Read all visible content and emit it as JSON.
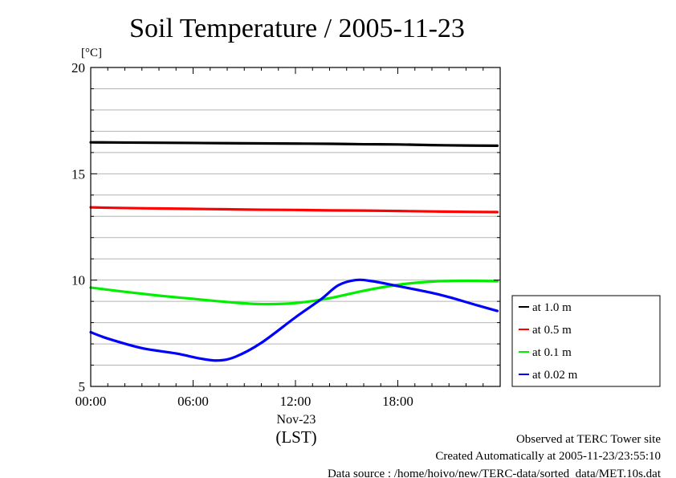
{
  "chart_data": {
    "type": "line",
    "title": "Soil Temperature / 2005-11-23",
    "ylabel": "[°C]",
    "xlabel": "(LST)",
    "x_date_label": "Nov-23",
    "x_ticks": [
      "00:00",
      "06:00",
      "12:00",
      "18:00"
    ],
    "xlim": [
      "00:00",
      "24:00"
    ],
    "ylim": [
      5,
      20
    ],
    "y_ticks": [
      "5",
      "10",
      "15",
      "20"
    ],
    "grid": true,
    "legend_position": "right",
    "series": [
      {
        "name": "at 1.0 m",
        "color": "#000000",
        "x": [
          "00:00",
          "02:00",
          "04:00",
          "06:00",
          "08:00",
          "10:00",
          "12:00",
          "14:00",
          "16:00",
          "18:00",
          "20:00",
          "22:00",
          "23:50"
        ],
        "values": [
          16.48,
          16.47,
          16.46,
          16.45,
          16.44,
          16.43,
          16.42,
          16.41,
          16.39,
          16.38,
          16.35,
          16.33,
          16.32
        ]
      },
      {
        "name": "at 0.5 m",
        "color": "#ff0000",
        "x": [
          "00:00",
          "02:00",
          "04:00",
          "06:00",
          "08:00",
          "10:00",
          "12:00",
          "14:00",
          "16:00",
          "18:00",
          "20:00",
          "22:00",
          "23:50"
        ],
        "values": [
          13.42,
          13.39,
          13.37,
          13.35,
          13.33,
          13.31,
          13.3,
          13.28,
          13.27,
          13.25,
          13.23,
          13.21,
          13.2
        ]
      },
      {
        "name": "at 0.1 m",
        "color": "#00ee00",
        "x": [
          "00:00",
          "02:00",
          "04:00",
          "06:00",
          "08:00",
          "10:00",
          "12:00",
          "14:00",
          "16:00",
          "18:00",
          "20:00",
          "22:00",
          "23:50"
        ],
        "values": [
          9.65,
          9.45,
          9.27,
          9.12,
          8.97,
          8.87,
          8.92,
          9.15,
          9.5,
          9.78,
          9.93,
          9.97,
          9.95
        ]
      },
      {
        "name": "at 0.02 m",
        "color": "#0000ff",
        "x": [
          "00:00",
          "01:00",
          "03:00",
          "05:00",
          "06:30",
          "07:30",
          "08:30",
          "10:00",
          "12:00",
          "13:30",
          "14:30",
          "15:30",
          "16:30",
          "18:00",
          "20:00",
          "21:00",
          "22:30",
          "23:50"
        ],
        "values": [
          7.55,
          7.25,
          6.8,
          6.55,
          6.3,
          6.22,
          6.4,
          7.05,
          8.25,
          9.1,
          9.75,
          10.0,
          9.95,
          9.72,
          9.4,
          9.2,
          8.85,
          8.55
        ]
      }
    ]
  },
  "footer": {
    "line1": "Observed at TERC Tower site",
    "line2": "Created Automatically at 2005-11-23/23:55:10",
    "line3": "Data source : /home/hoivo/new/TERC-data/sorted_data/MET.10s.dat"
  }
}
